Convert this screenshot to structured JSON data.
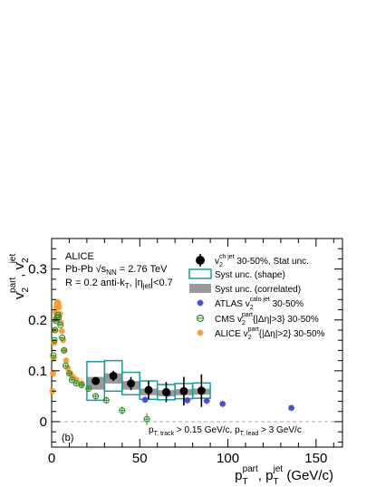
{
  "chart_data": {
    "type": "scatter",
    "title": "",
    "xlabel": {
      "main": "p",
      "sup1": "part",
      "sub1": "T",
      "sep": ", p",
      "sup2": "jet",
      "sub2": "T",
      "unit": " (GeV/c)"
    },
    "ylabel": {
      "main": "v",
      "sup1": "part",
      "sub1": "2",
      "sep": ", v",
      "sup2": "jet",
      "sub2": "2"
    },
    "xlim": [
      0,
      165
    ],
    "ylim": [
      -0.05,
      0.36
    ],
    "x_ticks": [
      0,
      50,
      100,
      150
    ],
    "y_ticks": [
      0,
      0.1,
      0.2,
      0.3
    ],
    "x_tick_labels": [
      "0",
      "50",
      "100",
      "150"
    ],
    "y_tick_labels": [
      "0",
      "0.1",
      "0.2",
      "0.3"
    ],
    "grid": false,
    "zero_line": "dashed",
    "panel_label": "(b)",
    "experiment_label": "ALICE",
    "system_label": {
      "text": "Pb-Pb √s",
      "sub": "NN",
      "rest": " = 2.76 TeV"
    },
    "jet_label": {
      "text": "R = 0.2 anti-k",
      "sub": "T",
      "rest": ", |η",
      "sub2": "jet",
      "rest2": "|<0.7"
    },
    "cut_label": {
      "p1": "p",
      "sub1": "T, track",
      "mid": " > 0.15 GeV/c, p",
      "sub2": "T, lead",
      "end": " > 3 GeV/c"
    },
    "legend_position": "top-right",
    "legend": [
      {
        "marker": "black-circle",
        "text": "v",
        "sub": "2",
        "sup": "ch jet",
        "rest": " 30-50%, Stat unc."
      },
      {
        "marker": "teal-box",
        "text": "Syst unc. (shape)"
      },
      {
        "marker": "gray-box",
        "text": "Syst unc. (correlated)"
      },
      {
        "marker": "blue-star",
        "text": "ATLAS v",
        "sub": "2",
        "sup": "calo jet",
        "rest": " 30-50%"
      },
      {
        "marker": "green-open-circle",
        "text": "CMS v",
        "sub": "2",
        "sup": "part",
        "rest": "{|Δη|>3} 30-50%"
      },
      {
        "marker": "orange-star",
        "text": "ALICE v",
        "sub": "2",
        "sup": "part",
        "rest": "{|Δη|>2} 30-50%"
      }
    ],
    "colors": {
      "alice_jet": "#000000",
      "shape_box": "#1a9c9c",
      "correlated_box": "#999999",
      "atlas": "#4a4ad0",
      "cms": "#2e8b2e",
      "alice_part": "#f5a033"
    },
    "series": [
      {
        "name": "ALICE charged jet v2 30-50%",
        "x": [
          25,
          35,
          45,
          55,
          65,
          75,
          85
        ],
        "y": [
          0.08,
          0.09,
          0.075,
          0.062,
          0.058,
          0.06,
          0.061
        ],
        "stat_err": [
          0.008,
          0.01,
          0.013,
          0.018,
          0.02,
          0.028,
          0.032
        ],
        "syst_shape_err": [
          0.038,
          0.03,
          0.022,
          0.018,
          0.015,
          0.015,
          0.015
        ],
        "syst_corr_low": [
          0.063,
          0.075,
          0.063,
          0.052,
          0.05,
          0.052,
          0.053
        ],
        "syst_corr_high": [
          0.088,
          0.095,
          0.08,
          0.065,
          0.062,
          0.064,
          0.065
        ],
        "box_half_width": 5
      },
      {
        "name": "ATLAS calo jet v2 30-50%",
        "x": [
          53,
          66,
          77,
          88,
          97,
          136
        ],
        "y": [
          0.043,
          0.055,
          0.042,
          0.041,
          0.035,
          0.027
        ],
        "err": [
          0.004,
          0.004,
          0.003,
          0.003,
          0.003,
          0.004
        ]
      },
      {
        "name": "CMS particle v2 {|Δη|>3} 30-50%",
        "x": [
          1.0,
          1.5,
          2.0,
          2.5,
          3.0,
          3.5,
          4.0,
          5.0,
          6.0,
          7.0,
          8.0,
          10.0,
          11.5,
          14.0,
          17.0,
          21.0,
          25.0,
          31.0,
          40.0,
          54.0
        ],
        "y": [
          0.13,
          0.16,
          0.18,
          0.198,
          0.205,
          0.21,
          0.205,
          0.19,
          0.165,
          0.14,
          0.11,
          0.095,
          0.082,
          0.075,
          0.072,
          0.065,
          0.05,
          0.042,
          0.022,
          0.005
        ],
        "err": [
          0.002,
          0.002,
          0.002,
          0.002,
          0.002,
          0.002,
          0.002,
          0.002,
          0.002,
          0.002,
          0.003,
          0.003,
          0.003,
          0.004,
          0.004,
          0.005,
          0.006,
          0.006,
          0.008,
          0.012
        ]
      },
      {
        "name": "ALICE particle v2 {|Δη|>2} 30-50%",
        "x": [
          0.5,
          0.8,
          1.1,
          1.4,
          1.7,
          2.0,
          2.3,
          2.6,
          3.0,
          3.4,
          3.8,
          4.2,
          4.7,
          5.2,
          5.8,
          6.5,
          7.3,
          8.2,
          9.2,
          10.5,
          12,
          14,
          17
        ],
        "y": [
          0.06,
          0.095,
          0.125,
          0.155,
          0.18,
          0.2,
          0.215,
          0.225,
          0.232,
          0.235,
          0.232,
          0.225,
          0.212,
          0.195,
          0.178,
          0.16,
          0.14,
          0.12,
          0.105,
          0.095,
          0.088,
          0.082,
          0.075
        ],
        "err": [
          0.003,
          0.003,
          0.003,
          0.003,
          0.003,
          0.003,
          0.003,
          0.003,
          0.003,
          0.003,
          0.003,
          0.003,
          0.003,
          0.004,
          0.004,
          0.004,
          0.005,
          0.005,
          0.005,
          0.006,
          0.006,
          0.007,
          0.008
        ]
      }
    ]
  }
}
